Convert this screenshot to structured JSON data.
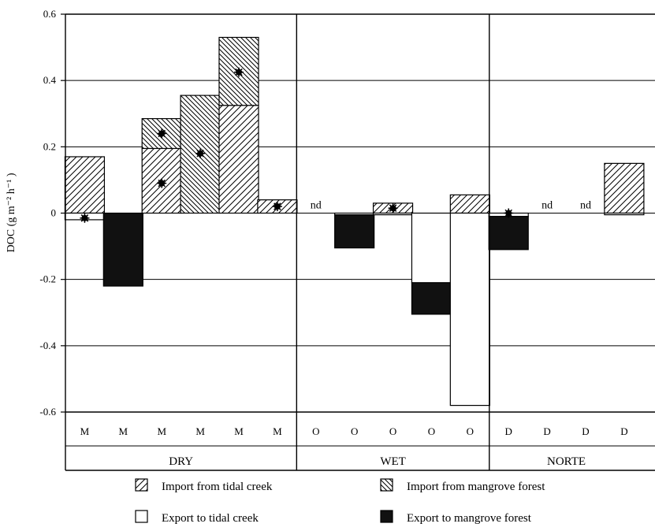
{
  "chart_data": {
    "type": "bar",
    "subtype": "stacked-bar-with-markers",
    "ylabel": "DOC (g m⁻² h⁻¹ )",
    "ylim": [
      -0.6,
      0.6
    ],
    "yticks": [
      -0.6,
      -0.4,
      -0.2,
      0,
      0.2,
      0.4,
      0.6
    ],
    "ytick_labels": [
      "-0.6",
      "-0.4",
      "-0.2",
      "0",
      "0.2",
      "0.4",
      "0.6"
    ],
    "grid": "horizontal",
    "colors": {
      "ink": "#000000",
      "import_fill": "#ffffff",
      "export_tidal": "#ffffff",
      "export_mangrove": "#111111"
    },
    "seasons": [
      {
        "name": "DRY",
        "count": 6
      },
      {
        "name": "WET",
        "count": 5
      },
      {
        "name": "NORTE",
        "count": 4
      }
    ],
    "categories": [
      "M",
      "M",
      "M",
      "M",
      "M",
      "M",
      "O",
      "O",
      "O",
      "O",
      "O",
      "D",
      "D",
      "D",
      "D"
    ],
    "series": [
      {
        "name": "Import from tidal creek",
        "pattern": "tidal-hatch",
        "values": [
          0.17,
          0,
          0.195,
          0,
          0.325,
          0.04,
          0,
          0,
          0.03,
          0,
          0.055,
          0,
          0,
          0,
          0.15
        ]
      },
      {
        "name": "Import from mangrove forest",
        "pattern": "mangrove-hatch",
        "values": [
          0,
          0,
          0.09,
          0.355,
          0.205,
          0,
          0,
          0,
          0,
          0,
          0,
          0,
          0,
          0,
          0
        ]
      },
      {
        "name": "Export to tidal creek",
        "pattern": "empty",
        "values": [
          -0.02,
          0,
          0,
          0,
          0,
          0,
          0,
          -0.005,
          -0.005,
          -0.21,
          -0.58,
          -0.01,
          0,
          0,
          -0.005
        ]
      },
      {
        "name": "Export to mangrove forest",
        "pattern": "solid",
        "values": [
          0,
          -0.22,
          0,
          0,
          0,
          0,
          0,
          -0.1,
          0,
          -0.095,
          0,
          -0.1,
          0,
          0,
          0
        ]
      }
    ],
    "net_markers": [
      -0.015,
      null,
      [
        0.24,
        0.09
      ],
      0.18,
      0.425,
      0.02,
      null,
      null,
      0.015,
      null,
      null,
      0.0,
      null,
      null,
      null
    ],
    "nd_labels": [
      {
        "index": 6,
        "text": "nd"
      },
      {
        "index": 12,
        "text": "nd"
      },
      {
        "index": 13,
        "text": "nd"
      }
    ],
    "legend": [
      {
        "label": "Import from tidal creek",
        "pattern": "tidal-hatch"
      },
      {
        "label": "Import from mangrove forest",
        "pattern": "mangrove-hatch"
      },
      {
        "label": "Export to tidal creek",
        "pattern": "empty"
      },
      {
        "label": "Export to mangrove forest",
        "pattern": "solid"
      }
    ]
  }
}
